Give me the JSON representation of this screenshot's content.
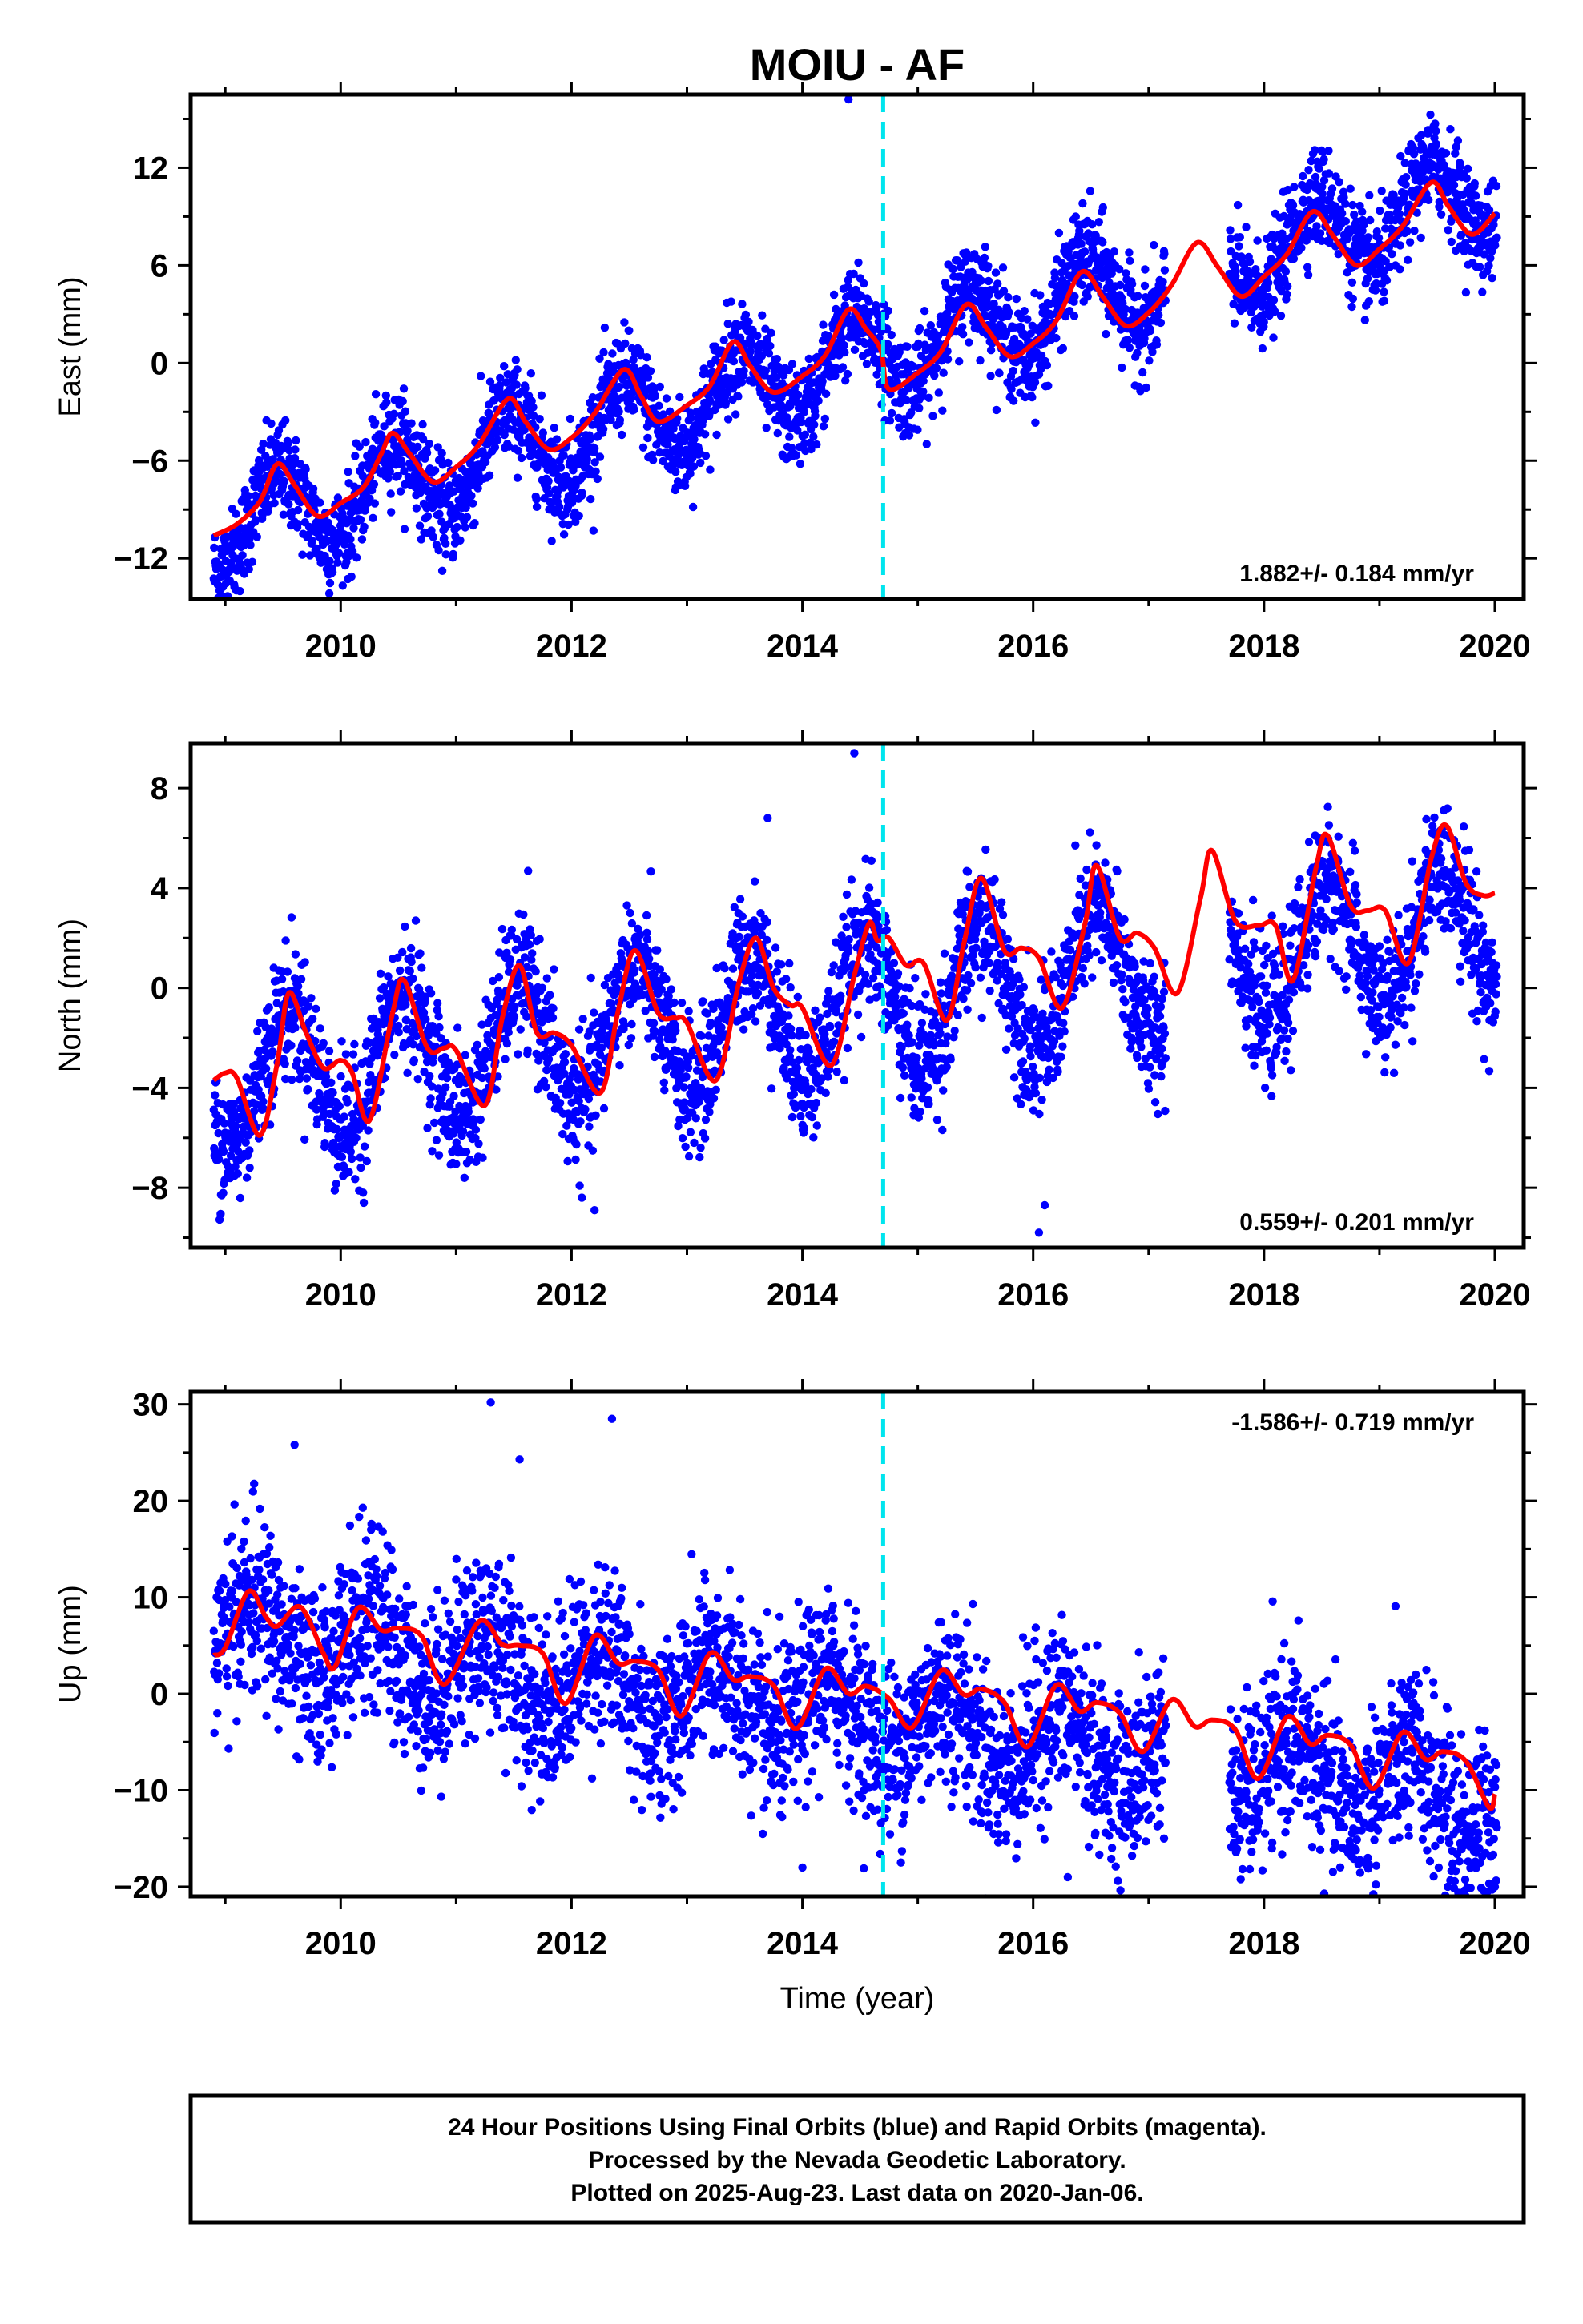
{
  "figure": {
    "title": "MOIU - AF",
    "footer_lines": [
      "24 Hour Positions Using Final Orbits (blue) and Rapid Orbits (magenta).",
      "Processed by the Nevada Geodetic Laboratory.",
      "Plotted on 2025-Aug-23. Last data on 2020-Jan-06."
    ],
    "colors": {
      "points": "#0000ff",
      "model": "#ff0000",
      "event_line": "#00e5ee",
      "frame": "#000000"
    }
  },
  "chart_data": [
    {
      "type": "scatter",
      "title": "MOIU - AF",
      "ylabel": "East (mm)",
      "xlabel": "",
      "xlim": [
        2008.7,
        2020.25
      ],
      "ylim": [
        -14.5,
        16.5
      ],
      "xticks": [
        2010,
        2012,
        2014,
        2016,
        2018,
        2020
      ],
      "yticks": [
        -12,
        -6,
        0,
        6,
        12
      ],
      "grid": false,
      "rate_annotation": "1.882+/- 0.184 mm/yr",
      "rate_position": "bottom-right",
      "event_line_x": 2014.7,
      "series": [
        {
          "name": "",
          "kind": "points",
          "trend": {
            "intercept": -10.3,
            "slope": 1.882,
            "x0": 2008.9
          },
          "annual_amplitude": 2.6,
          "annual_peak": 0.45,
          "noise": 1.5,
          "coverage": [
            [
              2008.9,
              2017.15
            ],
            [
              2017.7,
              2020.02
            ]
          ],
          "outliers": [
            [
              2014.4,
              16.2
            ]
          ]
        },
        {
          "name": "",
          "kind": "line",
          "points": [
            [
              2008.9,
              -10.6
            ],
            [
              2009.1,
              -9.9
            ],
            [
              2009.3,
              -8.5
            ],
            [
              2009.45,
              -6.2
            ],
            [
              2009.6,
              -7.5
            ],
            [
              2009.8,
              -9.4
            ],
            [
              2010.0,
              -8.6
            ],
            [
              2010.2,
              -7.6
            ],
            [
              2010.35,
              -5.6
            ],
            [
              2010.45,
              -4.3
            ],
            [
              2010.6,
              -5.6
            ],
            [
              2010.8,
              -7.3
            ],
            [
              2011.0,
              -6.4
            ],
            [
              2011.2,
              -5.0
            ],
            [
              2011.45,
              -2.2
            ],
            [
              2011.6,
              -3.6
            ],
            [
              2011.8,
              -5.3
            ],
            [
              2012.0,
              -4.6
            ],
            [
              2012.2,
              -3.1
            ],
            [
              2012.45,
              -0.4
            ],
            [
              2012.6,
              -2.0
            ],
            [
              2012.75,
              -3.6
            ],
            [
              2013.0,
              -2.6
            ],
            [
              2013.2,
              -1.4
            ],
            [
              2013.4,
              1.3
            ],
            [
              2013.55,
              -0.2
            ],
            [
              2013.75,
              -1.8
            ],
            [
              2014.0,
              -0.8
            ],
            [
              2014.2,
              0.5
            ],
            [
              2014.4,
              3.3
            ],
            [
              2014.55,
              2.1
            ],
            [
              2014.68,
              0.8
            ],
            [
              2014.75,
              -1.6
            ],
            [
              2015.0,
              -0.6
            ],
            [
              2015.2,
              0.7
            ],
            [
              2015.42,
              3.6
            ],
            [
              2015.6,
              2.1
            ],
            [
              2015.8,
              0.4
            ],
            [
              2016.0,
              1.2
            ],
            [
              2016.2,
              2.6
            ],
            [
              2016.42,
              5.6
            ],
            [
              2016.6,
              4.1
            ],
            [
              2016.8,
              2.3
            ],
            [
              2017.0,
              3.1
            ],
            [
              2017.2,
              4.8
            ],
            [
              2017.42,
              7.4
            ],
            [
              2017.6,
              5.9
            ],
            [
              2017.8,
              4.1
            ],
            [
              2018.0,
              5.3
            ],
            [
              2018.2,
              6.7
            ],
            [
              2018.42,
              9.3
            ],
            [
              2018.6,
              7.8
            ],
            [
              2018.8,
              6.0
            ],
            [
              2019.0,
              7.0
            ],
            [
              2019.2,
              8.4
            ],
            [
              2019.45,
              11.1
            ],
            [
              2019.6,
              9.6
            ],
            [
              2019.8,
              7.9
            ],
            [
              2020.0,
              9.2
            ]
          ]
        }
      ]
    },
    {
      "type": "scatter",
      "ylabel": "North (mm)",
      "xlabel": "",
      "xlim": [
        2008.7,
        2020.25
      ],
      "ylim": [
        -10.4,
        9.8
      ],
      "xticks": [
        2010,
        2012,
        2014,
        2016,
        2018,
        2020
      ],
      "yticks": [
        -8,
        -4,
        0,
        4,
        8
      ],
      "grid": false,
      "rate_annotation": "0.559+/- 0.201 mm/yr",
      "rate_position": "bottom-right",
      "event_line_x": 2014.7,
      "series": [
        {
          "name": "",
          "kind": "points",
          "trend": {
            "intercept": -3.8,
            "slope": 0.559,
            "x0": 2008.9
          },
          "annual_amplitude": 2.6,
          "annual_peak": 0.55,
          "noise": 1.3,
          "coverage": [
            [
              2008.9,
              2017.15
            ],
            [
              2017.7,
              2020.02
            ]
          ],
          "outliers": [
            [
              2014.45,
              9.4
            ],
            [
              2016.05,
              -9.8
            ],
            [
              2016.1,
              -8.7
            ],
            [
              2013.7,
              6.8
            ],
            [
              2010.2,
              -8.6
            ],
            [
              2012.2,
              -8.9
            ]
          ]
        },
        {
          "name": "",
          "kind": "line",
          "points": [
            [
              2008.9,
              -3.7
            ],
            [
              2009.0,
              -3.4
            ],
            [
              2009.1,
              -3.6
            ],
            [
              2009.3,
              -5.9
            ],
            [
              2009.45,
              -3.0
            ],
            [
              2009.55,
              -0.2
            ],
            [
              2009.7,
              -1.8
            ],
            [
              2009.85,
              -3.2
            ],
            [
              2010.0,
              -2.9
            ],
            [
              2010.1,
              -3.4
            ],
            [
              2010.25,
              -5.3
            ],
            [
              2010.45,
              -1.0
            ],
            [
              2010.55,
              0.3
            ],
            [
              2010.75,
              -2.4
            ],
            [
              2010.9,
              -2.4
            ],
            [
              2011.0,
              -2.5
            ],
            [
              2011.25,
              -4.7
            ],
            [
              2011.4,
              -1.2
            ],
            [
              2011.55,
              0.9
            ],
            [
              2011.7,
              -1.8
            ],
            [
              2011.85,
              -1.8
            ],
            [
              2012.0,
              -2.3
            ],
            [
              2012.25,
              -4.2
            ],
            [
              2012.4,
              -1.0
            ],
            [
              2012.55,
              1.5
            ],
            [
              2012.75,
              -1.0
            ],
            [
              2012.9,
              -1.2
            ],
            [
              2013.0,
              -1.4
            ],
            [
              2013.25,
              -3.7
            ],
            [
              2013.45,
              0.2
            ],
            [
              2013.6,
              2.0
            ],
            [
              2013.75,
              0.0
            ],
            [
              2013.9,
              -0.7
            ],
            [
              2014.0,
              -0.8
            ],
            [
              2014.25,
              -3.1
            ],
            [
              2014.45,
              0.5
            ],
            [
              2014.58,
              2.6
            ],
            [
              2014.65,
              1.9
            ],
            [
              2014.75,
              2.0
            ],
            [
              2014.9,
              0.9
            ],
            [
              2015.05,
              1.0
            ],
            [
              2015.25,
              -1.3
            ],
            [
              2015.4,
              1.8
            ],
            [
              2015.55,
              4.4
            ],
            [
              2015.75,
              1.5
            ],
            [
              2015.9,
              1.6
            ],
            [
              2016.05,
              1.2
            ],
            [
              2016.25,
              -0.8
            ],
            [
              2016.45,
              2.6
            ],
            [
              2016.55,
              4.9
            ],
            [
              2016.75,
              2.0
            ],
            [
              2016.9,
              2.2
            ],
            [
              2017.05,
              1.6
            ],
            [
              2017.25,
              -0.2
            ],
            [
              2017.45,
              3.6
            ],
            [
              2017.55,
              5.5
            ],
            [
              2017.75,
              2.7
            ],
            [
              2017.95,
              2.5
            ],
            [
              2018.1,
              2.5
            ],
            [
              2018.25,
              0.3
            ],
            [
              2018.45,
              4.8
            ],
            [
              2018.55,
              6.1
            ],
            [
              2018.75,
              3.3
            ],
            [
              2018.9,
              3.1
            ],
            [
              2019.05,
              3.1
            ],
            [
              2019.25,
              1.0
            ],
            [
              2019.45,
              5.2
            ],
            [
              2019.58,
              6.5
            ],
            [
              2019.75,
              4.2
            ],
            [
              2019.9,
              3.7
            ],
            [
              2020.0,
              3.8
            ]
          ]
        }
      ]
    },
    {
      "type": "scatter",
      "ylabel": "Up (mm)",
      "xlabel": "Time (year)",
      "xlim": [
        2008.7,
        2020.25
      ],
      "ylim": [
        -21,
        31.3
      ],
      "xticks": [
        2010,
        2012,
        2014,
        2016,
        2018,
        2020
      ],
      "yticks": [
        -20,
        -10,
        0,
        10,
        20,
        30
      ],
      "grid": false,
      "rate_annotation": "-1.586+/- 0.719 mm/yr",
      "rate_position": "top-right",
      "event_line_x": 2014.7,
      "series": [
        {
          "name": "",
          "kind": "points",
          "trend": {
            "intercept": 6.5,
            "slope": -1.586,
            "x0": 2008.9
          },
          "annual_amplitude": 3.5,
          "annual_peak": 0.25,
          "noise": 4.5,
          "coverage": [
            [
              2008.9,
              2017.15
            ],
            [
              2017.7,
              2020.02
            ]
          ],
          "outliers": [
            [
              2011.3,
              30.2
            ],
            [
              2012.35,
              28.5
            ],
            [
              2009.6,
              25.8
            ],
            [
              2011.55,
              24.3
            ],
            [
              2016.3,
              -19.0
            ],
            [
              2020.0,
              -20.0
            ],
            [
              2014.0,
              -18.0
            ]
          ]
        },
        {
          "name": "",
          "kind": "line",
          "points": [
            [
              2008.9,
              4.0
            ],
            [
              2009.0,
              4.8
            ],
            [
              2009.2,
              10.6
            ],
            [
              2009.35,
              8.0
            ],
            [
              2009.45,
              7.0
            ],
            [
              2009.65,
              9.0
            ],
            [
              2009.85,
              4.2
            ],
            [
              2009.95,
              2.8
            ],
            [
              2010.15,
              8.9
            ],
            [
              2010.35,
              6.6
            ],
            [
              2010.5,
              6.8
            ],
            [
              2010.7,
              6.0
            ],
            [
              2010.9,
              1.0
            ],
            [
              2011.2,
              7.5
            ],
            [
              2011.4,
              5.1
            ],
            [
              2011.55,
              5.0
            ],
            [
              2011.75,
              4.2
            ],
            [
              2011.95,
              -1.0
            ],
            [
              2012.2,
              6.0
            ],
            [
              2012.4,
              3.2
            ],
            [
              2012.55,
              3.4
            ],
            [
              2012.75,
              2.5
            ],
            [
              2012.95,
              -2.3
            ],
            [
              2013.2,
              4.2
            ],
            [
              2013.4,
              1.5
            ],
            [
              2013.55,
              1.8
            ],
            [
              2013.75,
              0.9
            ],
            [
              2013.95,
              -3.6
            ],
            [
              2014.2,
              2.6
            ],
            [
              2014.4,
              0.0
            ],
            [
              2014.55,
              0.8
            ],
            [
              2014.75,
              -0.5
            ],
            [
              2014.95,
              -3.5
            ],
            [
              2015.2,
              2.4
            ],
            [
              2015.4,
              -0.1
            ],
            [
              2015.55,
              0.5
            ],
            [
              2015.75,
              -0.9
            ],
            [
              2015.95,
              -5.5
            ],
            [
              2016.2,
              0.9
            ],
            [
              2016.4,
              -1.8
            ],
            [
              2016.55,
              -0.9
            ],
            [
              2016.75,
              -2.0
            ],
            [
              2016.95,
              -6.0
            ],
            [
              2017.2,
              -0.6
            ],
            [
              2017.4,
              -3.4
            ],
            [
              2017.55,
              -2.7
            ],
            [
              2017.75,
              -3.7
            ],
            [
              2017.95,
              -8.8
            ],
            [
              2018.2,
              -2.4
            ],
            [
              2018.4,
              -5.2
            ],
            [
              2018.55,
              -4.3
            ],
            [
              2018.75,
              -5.3
            ],
            [
              2018.95,
              -9.8
            ],
            [
              2019.2,
              -4.0
            ],
            [
              2019.4,
              -6.8
            ],
            [
              2019.55,
              -6.0
            ],
            [
              2019.75,
              -7.0
            ],
            [
              2019.95,
              -11.8
            ],
            [
              2020.0,
              -10.4
            ]
          ]
        }
      ]
    }
  ]
}
